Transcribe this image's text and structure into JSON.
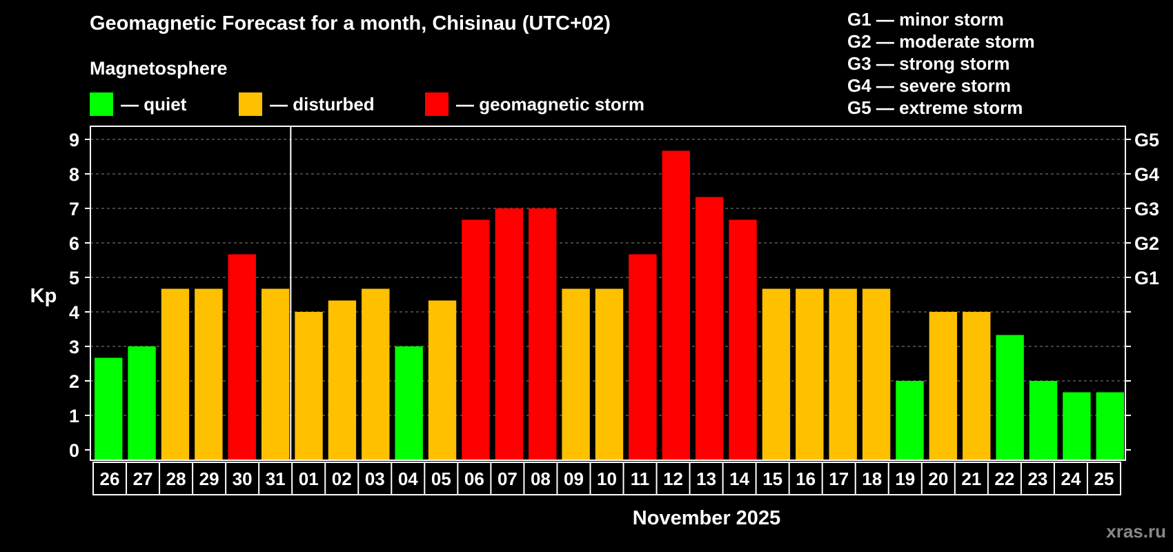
{
  "title": "Geomagnetic Forecast for a month, Chisinau (UTC+02)",
  "subtitle": "Magnetosphere",
  "legend": [
    {
      "label": "— quiet",
      "color": "#00ff00"
    },
    {
      "label": "— disturbed",
      "color": "#ffc000"
    },
    {
      "label": "— geomagnetic storm",
      "color": "#ff0000"
    }
  ],
  "storm_scale": [
    "G1 — minor storm",
    "G2 — moderate storm",
    "G3 — strong storm",
    "G4 — severe storm",
    "G5 — extreme storm"
  ],
  "watermark": "xras.ru",
  "colors": {
    "quiet": "#00ff00",
    "disturbed": "#ffc000",
    "storm": "#ff0000",
    "background": "#000000",
    "axis": "#ffffff",
    "grid": "#888888"
  },
  "chart_data": {
    "type": "bar",
    "ylabel": "Kp",
    "xlabel": "November 2025",
    "ylim": [
      0,
      9
    ],
    "yticks": [
      0,
      1,
      2,
      3,
      4,
      5,
      6,
      7,
      8,
      9
    ],
    "right_axis_labels": [
      {
        "value": 5,
        "label": "G1"
      },
      {
        "value": 6,
        "label": "G2"
      },
      {
        "value": 7,
        "label": "G3"
      },
      {
        "value": 8,
        "label": "G4"
      },
      {
        "value": 9,
        "label": "G5"
      }
    ],
    "grid": "horizontal dashed",
    "month_divider_after_category": "31",
    "categories": [
      "26",
      "27",
      "28",
      "29",
      "30",
      "31",
      "01",
      "02",
      "03",
      "04",
      "05",
      "06",
      "07",
      "08",
      "09",
      "10",
      "11",
      "12",
      "13",
      "14",
      "15",
      "16",
      "17",
      "18",
      "19",
      "20",
      "21",
      "22",
      "23",
      "24",
      "25"
    ],
    "values": [
      2.67,
      3.0,
      4.67,
      4.67,
      5.67,
      4.67,
      4.0,
      4.33,
      4.67,
      3.0,
      4.33,
      6.67,
      7.0,
      7.0,
      4.67,
      4.67,
      5.67,
      8.67,
      7.33,
      6.67,
      4.67,
      4.67,
      4.67,
      4.67,
      2.0,
      4.0,
      4.0,
      3.33,
      2.0,
      1.67,
      1.67
    ],
    "levels": [
      "quiet",
      "quiet",
      "disturbed",
      "disturbed",
      "storm",
      "disturbed",
      "disturbed",
      "disturbed",
      "disturbed",
      "quiet",
      "disturbed",
      "storm",
      "storm",
      "storm",
      "disturbed",
      "disturbed",
      "storm",
      "storm",
      "storm",
      "storm",
      "disturbed",
      "disturbed",
      "disturbed",
      "disturbed",
      "quiet",
      "disturbed",
      "disturbed",
      "quiet",
      "quiet",
      "quiet",
      "quiet"
    ]
  }
}
